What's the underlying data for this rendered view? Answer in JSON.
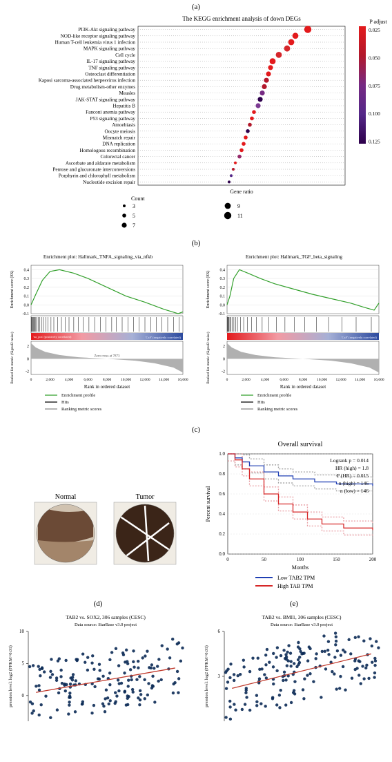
{
  "panel_a": {
    "label": "(a)",
    "title": "The KEGG enrichment analysis of down DEGs",
    "title_fontsize": 9,
    "xlabel": "Gene ratio",
    "colorbar_label": "P adjust",
    "colorbar_ticks": [
      0.025,
      0.05,
      0.075,
      0.1,
      0.125
    ],
    "colorbar_colors": [
      "#e31a1c",
      "#b2182b",
      "#762a83",
      "#542788",
      "#2d004b"
    ],
    "legend_title": "Count",
    "legend_counts": [
      3,
      5,
      7,
      9,
      11
    ],
    "legend_radii": [
      2.0,
      2.8,
      3.6,
      4.4,
      5.2
    ],
    "background": "#ffffff",
    "plot_border": "#000000",
    "grid_dot_color": "#888888",
    "items": [
      {
        "name": "PI3K-Akt signaling pathway",
        "ratio": 0.82,
        "count": 11,
        "p": 0.01,
        "color": "#e31a1c"
      },
      {
        "name": "NOD-like receptor signaling pathway",
        "ratio": 0.76,
        "count": 9,
        "p": 0.01,
        "color": "#e31a1c"
      },
      {
        "name": "Human T-cell leukemia virus 1 infection",
        "ratio": 0.74,
        "count": 9,
        "p": 0.01,
        "color": "#e31a1c"
      },
      {
        "name": "MAPK signaling pathway",
        "ratio": 0.72,
        "count": 9,
        "p": 0.025,
        "color": "#d6262b"
      },
      {
        "name": "Cell cycle",
        "ratio": 0.68,
        "count": 9,
        "p": 0.02,
        "color": "#d6262b"
      },
      {
        "name": "IL-17 signaling pathway",
        "ratio": 0.65,
        "count": 9,
        "p": 0.01,
        "color": "#e31a1c"
      },
      {
        "name": "TNF signaling pathway",
        "ratio": 0.64,
        "count": 7,
        "p": 0.01,
        "color": "#e31a1c"
      },
      {
        "name": "Osteoclast differentiation",
        "ratio": 0.63,
        "count": 7,
        "p": 0.01,
        "color": "#e31a1c"
      },
      {
        "name": "Kaposi sarcoma-associated herpesvirus infection",
        "ratio": 0.62,
        "count": 7,
        "p": 0.04,
        "color": "#b2182b"
      },
      {
        "name": "Drug metabolism-other enzymes",
        "ratio": 0.61,
        "count": 7,
        "p": 0.04,
        "color": "#b2182b"
      },
      {
        "name": "Measles",
        "ratio": 0.6,
        "count": 7,
        "p": 0.075,
        "color": "#762a83"
      },
      {
        "name": "JAK-STAT signaling pathway",
        "ratio": 0.59,
        "count": 7,
        "p": 0.125,
        "color": "#2d004b"
      },
      {
        "name": "Hepatitis B",
        "ratio": 0.58,
        "count": 7,
        "p": 0.07,
        "color": "#7d3b93"
      },
      {
        "name": "Fanconi anemia pathway",
        "ratio": 0.56,
        "count": 5,
        "p": 0.01,
        "color": "#e31a1c"
      },
      {
        "name": "P53 signaling pathway",
        "ratio": 0.55,
        "count": 5,
        "p": 0.01,
        "color": "#e31a1c"
      },
      {
        "name": "Amoebiasis",
        "ratio": 0.54,
        "count": 5,
        "p": 0.045,
        "color": "#b2182b"
      },
      {
        "name": "Oocyte meiosis",
        "ratio": 0.53,
        "count": 5,
        "p": 0.125,
        "color": "#2d004b"
      },
      {
        "name": "Mismatch repair",
        "ratio": 0.52,
        "count": 5,
        "p": 0.01,
        "color": "#e31a1c"
      },
      {
        "name": "DNA replication",
        "ratio": 0.51,
        "count": 5,
        "p": 0.01,
        "color": "#e31a1c"
      },
      {
        "name": "Homologous recombination",
        "ratio": 0.5,
        "count": 5,
        "p": 0.01,
        "color": "#e31a1c"
      },
      {
        "name": "Colorectal cancer",
        "ratio": 0.49,
        "count": 5,
        "p": 0.06,
        "color": "#962a6a"
      },
      {
        "name": "Ascorbate and aldarate metabolism",
        "ratio": 0.47,
        "count": 3,
        "p": 0.01,
        "color": "#e31a1c"
      },
      {
        "name": "Pentose and glucuronate interconversions",
        "ratio": 0.46,
        "count": 3,
        "p": 0.04,
        "color": "#b2182b"
      },
      {
        "name": "Porphyrin and chlorophyll metabolism",
        "ratio": 0.45,
        "count": 3,
        "p": 0.1,
        "color": "#542788"
      },
      {
        "name": "Nucleotide excision repair",
        "ratio": 0.44,
        "count": 3,
        "p": 0.125,
        "color": "#2d004b"
      }
    ]
  },
  "panel_b": {
    "label": "(b)",
    "left": {
      "title": "Enrichment plot: Hallmark_TNFA_signaling_via_nfkb",
      "ylabel1": "Enrichment score (ES)",
      "ylabel2": "Ranked list metric (Signal2 noise)",
      "xlabel": "Rank in ordered dataset",
      "xticks": [
        0,
        2000,
        4000,
        6000,
        8000,
        10000,
        12000,
        14000,
        16000
      ],
      "yticks1": [
        -0.1,
        0.0,
        0.1,
        0.2,
        0.3,
        0.4
      ],
      "yticks2": [
        -2,
        0,
        2
      ],
      "zero_cross": "Zero cross at 7873",
      "pos_label": "'na_pos' (positively correlated)",
      "neg_label": "'CxF' (negatively correlated)",
      "line_color": "#33a02c",
      "hit_color": "#000000",
      "gradient_colors": [
        "#e31a1c",
        "#f29aa3",
        "#a6b0d6",
        "#2c4a9e"
      ],
      "legend": [
        "Enrichment profile",
        "Hits",
        "Ranking metric scores"
      ],
      "legend_colors": [
        "#33a02c",
        "#000000",
        "#888888"
      ],
      "es_curve": [
        [
          0,
          0.0
        ],
        [
          500,
          0.12
        ],
        [
          1200,
          0.28
        ],
        [
          2000,
          0.38
        ],
        [
          3000,
          0.4
        ],
        [
          4500,
          0.36
        ],
        [
          6000,
          0.3
        ],
        [
          8000,
          0.2
        ],
        [
          10000,
          0.1
        ],
        [
          12000,
          0.03
        ],
        [
          14000,
          -0.05
        ],
        [
          15500,
          -0.1
        ],
        [
          16000,
          -0.08
        ]
      ],
      "hits": [
        50,
        120,
        200,
        260,
        350,
        420,
        500,
        600,
        750,
        900,
        1100,
        1300,
        1550,
        1800,
        2100,
        2400,
        2800,
        3200,
        3600,
        4000,
        4500,
        5000,
        5500,
        6100,
        6700,
        7300,
        7900,
        8500,
        9000,
        9600,
        10200,
        10800,
        11400,
        12000,
        12600,
        13200,
        13800,
        14400,
        15000,
        15600
      ],
      "metric_curve": [
        [
          0,
          2.5
        ],
        [
          500,
          1.8
        ],
        [
          1500,
          1.1
        ],
        [
          3000,
          0.6
        ],
        [
          5000,
          0.25
        ],
        [
          8000,
          0.0
        ],
        [
          11000,
          -0.3
        ],
        [
          13000,
          -0.7
        ],
        [
          15000,
          -1.4
        ],
        [
          16000,
          -2.2
        ]
      ]
    },
    "right": {
      "title": "Enrichment plot: Hallmark_TGF_beta_signaling",
      "ylabel1": "Enrichment score (ES)",
      "ylabel2": "Ranked list metric (Signal2 noise)",
      "xlabel": "Rank in ordered dataset",
      "xticks": [
        0,
        2000,
        4000,
        6000,
        8000,
        10000,
        12000,
        14000,
        16000
      ],
      "yticks1": [
        -0.1,
        0.0,
        0.1,
        0.2,
        0.3,
        0.4
      ],
      "yticks2": [
        -2,
        0,
        2
      ],
      "zero_cross": "",
      "pos_label": "",
      "neg_label": "'CxF' (negatively correlated)",
      "line_color": "#33a02c",
      "hit_color": "#000000",
      "gradient_colors": [
        "#e31a1c",
        "#f29aa3",
        "#a6b0d6",
        "#2c4a9e"
      ],
      "legend": [
        "Enrichment profile",
        "Hits",
        "Ranking metric scores"
      ],
      "legend_colors": [
        "#33a02c",
        "#000000",
        "#888888"
      ],
      "es_curve": [
        [
          0,
          0.0
        ],
        [
          300,
          0.1
        ],
        [
          700,
          0.3
        ],
        [
          1300,
          0.4
        ],
        [
          2200,
          0.36
        ],
        [
          3500,
          0.3
        ],
        [
          5000,
          0.24
        ],
        [
          7000,
          0.18
        ],
        [
          9000,
          0.12
        ],
        [
          11000,
          0.07
        ],
        [
          13000,
          0.02
        ],
        [
          14500,
          -0.03
        ],
        [
          15500,
          -0.06
        ],
        [
          16000,
          0.02
        ]
      ],
      "hits": [
        30,
        80,
        140,
        210,
        300,
        420,
        560,
        720,
        900,
        1100,
        1400,
        1750,
        2150,
        2600,
        3100,
        3700,
        4400,
        5200,
        6100,
        7100,
        8200,
        9400,
        10700,
        12100,
        13600,
        15200
      ],
      "metric_curve": [
        [
          0,
          2.5
        ],
        [
          500,
          1.8
        ],
        [
          1500,
          1.1
        ],
        [
          3000,
          0.6
        ],
        [
          5000,
          0.25
        ],
        [
          8000,
          0.0
        ],
        [
          11000,
          -0.3
        ],
        [
          13000,
          -0.7
        ],
        [
          15000,
          -1.4
        ],
        [
          16000,
          -2.2
        ]
      ]
    }
  },
  "panel_c": {
    "label": "(c)",
    "tissue_labels": [
      "Normal",
      "Tumor"
    ],
    "tissue_bg": "#f0ece4",
    "tissue_normal_colors": [
      "#6b4a36",
      "#a3856a",
      "#d0c2b0"
    ],
    "tissue_tumor_colors": [
      "#3b2518",
      "#ffffff"
    ],
    "km": {
      "title": "Overall survival",
      "xlabel": "Months",
      "ylabel": "Percent survival",
      "xlim": [
        0,
        200
      ],
      "xtick_step": 50,
      "ylim": [
        0,
        1.0
      ],
      "ytick_step": 0.2,
      "stats": [
        "Logrank p = 0.014",
        "HR (high) = 1.8",
        "P (HR) = 0.015",
        "n (high) = 146",
        "n (low) = 146"
      ],
      "legend": [
        {
          "label": "Low TAB2 TPM",
          "color": "#1f3fb3"
        },
        {
          "label": "High TAB TPM",
          "color": "#d62728"
        }
      ],
      "grid_color": "#cccccc",
      "ci_color_low": "#a0a0a0",
      "ci_color_high": "#e79aa0",
      "low_curve": [
        [
          0,
          1.0
        ],
        [
          10,
          0.96
        ],
        [
          20,
          0.92
        ],
        [
          30,
          0.88
        ],
        [
          50,
          0.82
        ],
        [
          70,
          0.78
        ],
        [
          90,
          0.75
        ],
        [
          120,
          0.72
        ],
        [
          150,
          0.7
        ],
        [
          200,
          0.68
        ]
      ],
      "high_curve": [
        [
          0,
          1.0
        ],
        [
          10,
          0.94
        ],
        [
          20,
          0.85
        ],
        [
          30,
          0.75
        ],
        [
          50,
          0.6
        ],
        [
          70,
          0.5
        ],
        [
          90,
          0.42
        ],
        [
          110,
          0.35
        ],
        [
          130,
          0.3
        ],
        [
          160,
          0.26
        ],
        [
          200,
          0.24
        ]
      ]
    }
  },
  "panel_d": {
    "label": "(d)",
    "title": "TAB2 vs. SOX2, 306 samples (CESC)",
    "subtitle": "Data source: StarBase v3.0 project",
    "xlim": [
      0,
      10
    ],
    "ylim": [
      -4,
      10
    ],
    "xlabel": "pression level: log2 (FPKM+0.01)",
    "ylabel": "pression level: log2 (FPKM+0.01)",
    "yticks": [
      0,
      5,
      10
    ],
    "point_color": "#0b2a55",
    "line_color": "#c0392b",
    "fit_line": [
      [
        0.5,
        0.5
      ],
      [
        9.5,
        4.3
      ]
    ],
    "n_points": 170
  },
  "panel_e": {
    "label": "(e)",
    "title": "TAB2 vs. BMI1, 306 samples (CESC)",
    "subtitle": "Data source: StarBase v3.0 project",
    "xlim": [
      0,
      10
    ],
    "ylim": [
      0,
      6
    ],
    "xlabel": "pression level: log2 (FPKM+0.01)",
    "ylabel": "pression level: log2 (FPKM+0.01)",
    "yticks": [
      3,
      6
    ],
    "point_color": "#0b2a55",
    "line_color": "#c0392b",
    "fit_line": [
      [
        0.5,
        2.2
      ],
      [
        9.5,
        4.5
      ]
    ],
    "n_points": 170
  }
}
